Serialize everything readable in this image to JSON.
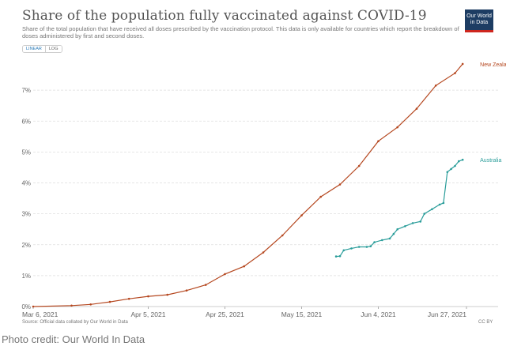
{
  "header": {
    "title": "Share of the population fully vaccinated against COVID-19",
    "subtitle": "Share of the total population that have received all doses prescribed by the vaccination protocol. This data is only available for countries which report the breakdown of doses administered by first and second doses.",
    "logo_text": "Our World in Data",
    "scale_options": [
      "LINEAR",
      "LOG"
    ],
    "active_scale": "LINEAR"
  },
  "footer": {
    "source": "Source: Official data collated by Our World in Data",
    "license": "CC BY",
    "credit": "Photo credit: Our World In Data"
  },
  "colors": {
    "new_zealand": "#b5471f",
    "australia": "#2a9d9a",
    "grid": "#dddddd",
    "text": "#666666"
  },
  "chart_data": {
    "type": "line",
    "title": "Share of the population fully vaccinated against COVID-19",
    "xlabel": "",
    "ylabel": "",
    "x_tick_labels": [
      "Mar 6, 2021",
      "Apr 5, 2021",
      "Apr 25, 2021",
      "May 15, 2021",
      "Jun 4, 2021",
      "Jun 27, 2021"
    ],
    "x_tick_dates": [
      "2021-03-06",
      "2021-04-05",
      "2021-04-25",
      "2021-05-15",
      "2021-06-04",
      "2021-06-27"
    ],
    "y_tick_labels": [
      "0%",
      "1%",
      "2%",
      "3%",
      "4%",
      "5%",
      "6%",
      "7%"
    ],
    "ylim": [
      0,
      8
    ],
    "grid": true,
    "legend": "inline-right",
    "series": [
      {
        "name": "New Zealand",
        "points": [
          [
            "2021-03-06",
            0.0
          ],
          [
            "2021-03-16",
            0.03
          ],
          [
            "2021-03-21",
            0.07
          ],
          [
            "2021-03-26",
            0.15
          ],
          [
            "2021-03-31",
            0.25
          ],
          [
            "2021-04-05",
            0.33
          ],
          [
            "2021-04-10",
            0.38
          ],
          [
            "2021-04-15",
            0.52
          ],
          [
            "2021-04-20",
            0.7
          ],
          [
            "2021-04-25",
            1.05
          ],
          [
            "2021-04-30",
            1.3
          ],
          [
            "2021-05-05",
            1.75
          ],
          [
            "2021-05-10",
            2.3
          ],
          [
            "2021-05-15",
            2.95
          ],
          [
            "2021-05-20",
            3.55
          ],
          [
            "2021-05-25",
            3.95
          ],
          [
            "2021-05-30",
            4.55
          ],
          [
            "2021-06-04",
            5.35
          ],
          [
            "2021-06-09",
            5.8
          ],
          [
            "2021-06-14",
            6.4
          ],
          [
            "2021-06-19",
            7.15
          ],
          [
            "2021-06-24",
            7.55
          ],
          [
            "2021-06-26",
            7.85
          ]
        ]
      },
      {
        "name": "Australia",
        "points": [
          [
            "2021-05-24",
            1.62
          ],
          [
            "2021-05-25",
            1.63
          ],
          [
            "2021-05-26",
            1.82
          ],
          [
            "2021-05-28",
            1.88
          ],
          [
            "2021-05-30",
            1.93
          ],
          [
            "2021-06-01",
            1.93
          ],
          [
            "2021-06-02",
            1.95
          ],
          [
            "2021-06-03",
            2.08
          ],
          [
            "2021-06-05",
            2.15
          ],
          [
            "2021-06-07",
            2.2
          ],
          [
            "2021-06-08",
            2.35
          ],
          [
            "2021-06-09",
            2.5
          ],
          [
            "2021-06-11",
            2.6
          ],
          [
            "2021-06-13",
            2.7
          ],
          [
            "2021-06-15",
            2.75
          ],
          [
            "2021-06-16",
            3.0
          ],
          [
            "2021-06-18",
            3.15
          ],
          [
            "2021-06-20",
            3.3
          ],
          [
            "2021-06-21",
            3.35
          ],
          [
            "2021-06-22",
            4.35
          ],
          [
            "2021-06-23",
            4.45
          ],
          [
            "2021-06-24",
            4.55
          ],
          [
            "2021-06-25",
            4.7
          ],
          [
            "2021-06-26",
            4.75
          ]
        ]
      }
    ]
  }
}
